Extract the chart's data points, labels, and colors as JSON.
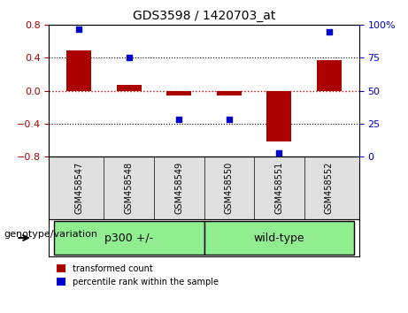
{
  "title": "GDS3598 / 1420703_at",
  "categories": [
    "GSM458547",
    "GSM458548",
    "GSM458549",
    "GSM458550",
    "GSM458551",
    "GSM458552"
  ],
  "bar_values": [
    0.49,
    0.07,
    -0.06,
    -0.06,
    -0.62,
    0.37
  ],
  "scatter_values": [
    97,
    75,
    28,
    28,
    3,
    95
  ],
  "left_ylim": [
    -0.8,
    0.8
  ],
  "left_yticks": [
    -0.8,
    -0.4,
    0.0,
    0.4,
    0.8
  ],
  "right_ylim": [
    0,
    100
  ],
  "right_yticks": [
    0,
    25,
    50,
    75,
    100
  ],
  "right_yticklabels": [
    "0",
    "25",
    "50",
    "75",
    "100%"
  ],
  "bar_color": "#aa0000",
  "scatter_color": "#0000cc",
  "zero_line_color": "#cc0000",
  "grid_color": "#000000",
  "groups": [
    {
      "label": "p300 +/-",
      "indices": [
        0,
        1,
        2
      ],
      "color": "#90ee90"
    },
    {
      "label": "wild-type",
      "indices": [
        3,
        4,
        5
      ],
      "color": "#90ee90"
    }
  ],
  "group_label": "genotype/variation",
  "legend_bar_label": "transformed count",
  "legend_scatter_label": "percentile rank within the sample",
  "bg_color": "#f0f0f0",
  "plot_bg": "#ffffff"
}
